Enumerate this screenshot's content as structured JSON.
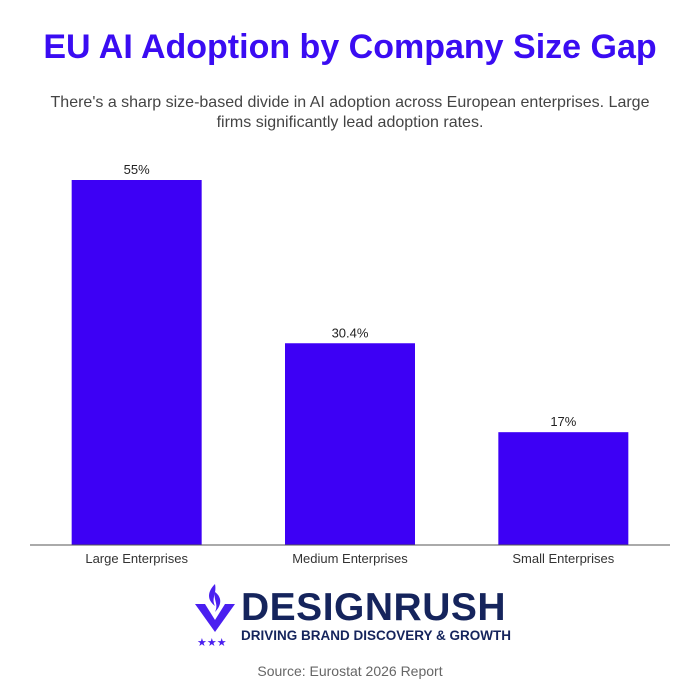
{
  "title": "EU AI Adoption by Company Size Gap",
  "subtitle": "There's a sharp size-based divide in AI adoption across European enterprises. Large firms significantly lead adoption rates.",
  "chart_data": {
    "type": "bar",
    "categories": [
      "Large Enterprises",
      "Medium Enterprises",
      "Small Enterprises"
    ],
    "values": [
      55,
      30.4,
      17
    ],
    "labels": [
      "55%",
      "30.4%",
      "17%"
    ],
    "ylim": [
      0,
      55
    ],
    "grid": false,
    "bar_color": "#3d00f5"
  },
  "logo": {
    "brand": "DESIGNRUSH",
    "tagline": "DRIVING BRAND DISCOVERY & GROWTH"
  },
  "source": "Source: Eurostat 2026 Report",
  "colors": {
    "title": "#3a0cf2",
    "logo_text": "#15245c",
    "logo_icon": "#4a1ff0"
  }
}
